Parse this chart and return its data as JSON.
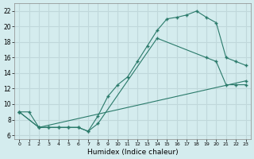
{
  "xlabel": "Humidex (Indice chaleur)",
  "xlim": [
    -0.5,
    23.5
  ],
  "ylim": [
    5.5,
    23.0
  ],
  "xticks": [
    0,
    1,
    2,
    3,
    4,
    5,
    6,
    7,
    8,
    9,
    10,
    11,
    12,
    13,
    14,
    15,
    16,
    17,
    18,
    19,
    20,
    21,
    22,
    23
  ],
  "yticks": [
    6,
    8,
    10,
    12,
    14,
    16,
    18,
    20,
    22
  ],
  "bg_color": "#d4ecee",
  "grid_color": "#c0d8db",
  "line_color": "#2a7a6a",
  "line1_x": [
    0,
    1,
    2,
    3,
    4,
    5,
    6,
    7,
    8,
    9,
    10,
    11,
    12,
    13,
    14,
    15,
    16,
    17,
    18,
    19,
    20,
    21,
    22,
    23
  ],
  "line1_y": [
    9.0,
    9.0,
    7.0,
    7.0,
    7.0,
    7.0,
    7.0,
    6.5,
    8.5,
    11.0,
    12.5,
    13.5,
    15.5,
    17.5,
    19.5,
    21.0,
    21.2,
    21.5,
    22.0,
    21.2,
    20.5,
    16.0,
    15.5,
    15.0
  ],
  "line2_x": [
    0,
    2,
    3,
    4,
    5,
    6,
    7,
    8,
    14,
    19,
    20,
    21,
    22,
    23
  ],
  "line2_y": [
    9.0,
    7.0,
    7.0,
    7.0,
    7.0,
    7.0,
    6.5,
    7.5,
    18.5,
    16.0,
    15.5,
    12.5,
    12.5,
    12.5
  ],
  "line3_x": [
    0,
    2,
    23
  ],
  "line3_y": [
    9.0,
    7.0,
    13.0
  ]
}
